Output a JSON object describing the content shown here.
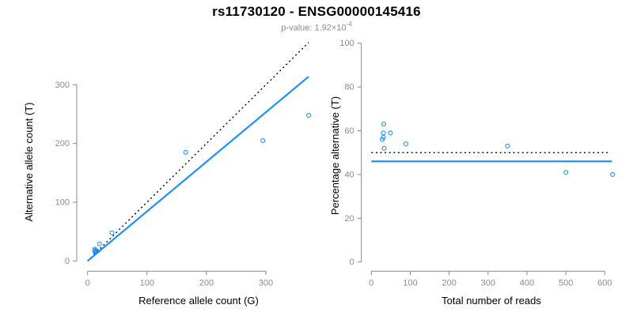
{
  "header": {
    "title": "rs11730120 - ENSG00000145416",
    "subtitle_prefix": "p-value: ",
    "subtitle_mantissa": "1.92×10",
    "subtitle_exponent": "-4"
  },
  "colors": {
    "accent_blue": "#1E90FF",
    "line_black": "#000000",
    "axis_gray": "#898989",
    "tick_label_gray": "#8c8c8c",
    "label_black": "#000000"
  },
  "chart_data": [
    {
      "type": "scatter",
      "name": "allele-count-scatter",
      "xlabel": "Reference allele count (G)",
      "ylabel": "Alternative allele count (T)",
      "xticks": [
        0,
        100,
        200,
        300
      ],
      "yticks": [
        0,
        100,
        200,
        300
      ],
      "xlim": [
        0,
        372
      ],
      "ylim": [
        0,
        373
      ],
      "grid": false,
      "points": [
        [
          12,
          20
        ],
        [
          13,
          18
        ],
        [
          13,
          17
        ],
        [
          12,
          16
        ],
        [
          16,
          17
        ],
        [
          20,
          29
        ],
        [
          41,
          48
        ],
        [
          165,
          185
        ],
        [
          295,
          205
        ],
        [
          372,
          248
        ]
      ],
      "lines": [
        {
          "name": "identity-line",
          "style": "dotted",
          "color_key": "line_black",
          "slope": 1,
          "intercept": 0,
          "x_range": [
            0,
            372
          ]
        },
        {
          "name": "regression-line",
          "style": "solid",
          "color_key": "accent_blue",
          "slope": 0.844,
          "intercept": 0,
          "x_range": [
            0,
            372
          ]
        }
      ]
    },
    {
      "type": "scatter",
      "name": "percentage-alternative-scatter",
      "xlabel": "Total number of reads",
      "ylabel": "Percentage alternative (T)",
      "xticks": [
        0,
        100,
        200,
        300,
        400,
        500,
        600
      ],
      "yticks": [
        0,
        20,
        40,
        60,
        80,
        100
      ],
      "xlim": [
        0,
        620
      ],
      "ylim": [
        0,
        100
      ],
      "grid": false,
      "points": [
        [
          32,
          63
        ],
        [
          31,
          59
        ],
        [
          31,
          57
        ],
        [
          28,
          56
        ],
        [
          49,
          59
        ],
        [
          33,
          52
        ],
        [
          89,
          54
        ],
        [
          350,
          53
        ],
        [
          500,
          41
        ],
        [
          620,
          40
        ]
      ],
      "lines": [
        {
          "name": "expected-percentage-line",
          "style": "dotted",
          "color_key": "line_black",
          "slope": 0,
          "intercept": 50,
          "x_range": [
            0,
            612
          ]
        },
        {
          "name": "fitted-percentage-line",
          "style": "solid",
          "color_key": "accent_blue",
          "slope": 0,
          "intercept": 46,
          "x_range": [
            0,
            618
          ]
        }
      ]
    }
  ]
}
